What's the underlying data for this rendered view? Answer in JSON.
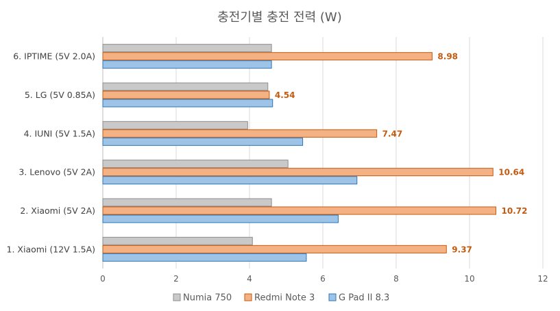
{
  "chart_data": {
    "type": "bar",
    "orientation": "horizontal",
    "title": "충전기별 충전 전력 (W)",
    "categories": [
      "6. IPTIME (5V 2.0A)",
      "5. LG (5V 0.85A)",
      "4. IUNI (5V 1.5A)",
      "3. Lenovo (5V 2A)",
      "2. Xiaomi (5V 2A)",
      "1. Xiaomi (12V 1.5A)"
    ],
    "series": [
      {
        "name": "Numia 750",
        "color": "#c9c9c9",
        "stroke": "#8c8c8c",
        "values": [
          4.6,
          4.5,
          3.95,
          5.05,
          4.6,
          4.08
        ],
        "show_labels": false
      },
      {
        "name": "Redmi Note 3",
        "color": "#f4b183",
        "stroke": "#c55a11",
        "values": [
          8.98,
          4.54,
          7.47,
          10.64,
          10.72,
          9.37
        ],
        "show_labels": true,
        "labels": [
          "8.98",
          "4.54",
          "7.47",
          "10.64",
          "10.72",
          "9.37"
        ]
      },
      {
        "name": "G Pad II 8.3",
        "color": "#9dc3e6",
        "stroke": "#2e75b6",
        "values": [
          4.6,
          4.63,
          5.45,
          6.93,
          6.42,
          5.55
        ],
        "show_labels": false
      }
    ],
    "xlim": [
      0,
      12
    ],
    "xticks": [
      "0",
      "2",
      "4",
      "6",
      "8",
      "10",
      "12"
    ],
    "grid": true,
    "legend_position": "bottom"
  }
}
